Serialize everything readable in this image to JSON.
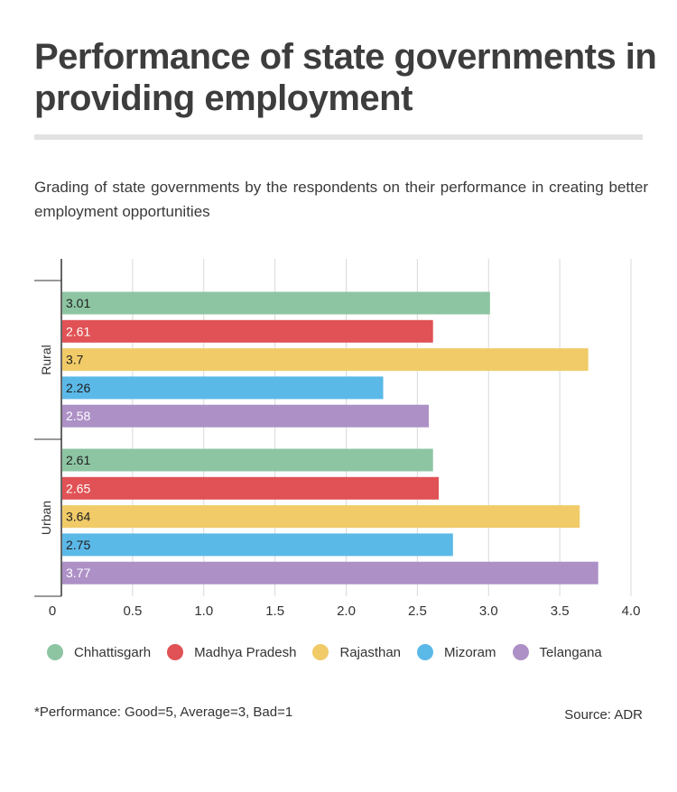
{
  "title": "Performance of state governments in providing employment",
  "subtitle": "Grading of state governments by the respondents on their performance in creating better employment opportunities",
  "footnote": "*Performance: Good=5, Average=3, Bad=1",
  "source": "Source: ADR",
  "legend": [
    {
      "label": "Chhattisgarh",
      "color": "#8dc5a3"
    },
    {
      "label": "Madhya Pradesh",
      "color": "#e05255"
    },
    {
      "label": "Rajasthan",
      "color": "#f0cb68"
    },
    {
      "label": "Mizoram",
      "color": "#5bb9e8"
    },
    {
      "label": "Telangana",
      "color": "#ad90c6"
    }
  ],
  "chart_data": {
    "type": "bar",
    "orientation": "horizontal",
    "title": "Performance of state governments in providing employment",
    "xlabel": "",
    "ylabel": "",
    "xlim": [
      0,
      4.0
    ],
    "x_ticks": [
      "0",
      "0.5",
      "1.0",
      "1.5",
      "2.0",
      "2.5",
      "3.0",
      "3.5",
      "4.0"
    ],
    "grid": true,
    "legend_position": "bottom",
    "categories": [
      "Rural",
      "Urban"
    ],
    "series": [
      {
        "name": "Chhattisgarh",
        "color": "#8dc5a3",
        "values": [
          3.01,
          2.61
        ]
      },
      {
        "name": "Madhya Pradesh",
        "color": "#e05255",
        "values": [
          2.61,
          2.65
        ]
      },
      {
        "name": "Rajasthan",
        "color": "#f0cb68",
        "values": [
          3.7,
          3.64
        ]
      },
      {
        "name": "Mizoram",
        "color": "#5bb9e8",
        "values": [
          2.26,
          2.75
        ]
      },
      {
        "name": "Telangana",
        "color": "#ad90c6",
        "values": [
          2.58,
          3.77
        ]
      }
    ]
  }
}
